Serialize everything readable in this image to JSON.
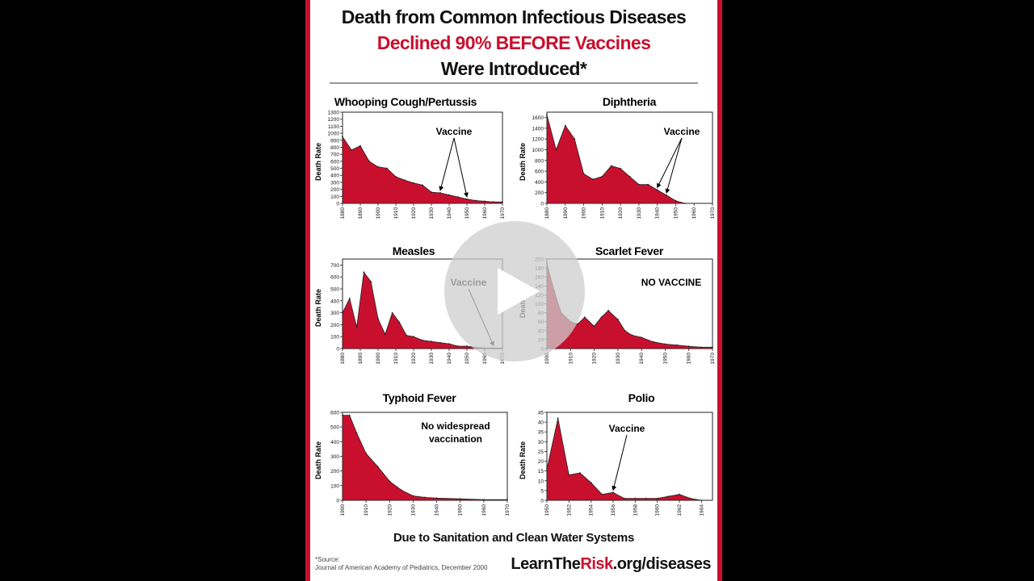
{
  "poster": {
    "title_line1": "Death from Common Infectious Diseases",
    "title_line2": "Declined 90% BEFORE Vaccines",
    "title_line3": "Were Introduced*",
    "footer": "Due to Sanitation and Clean Water Systems",
    "source_line1": "*Source:",
    "source_line2": "Journal of American Academy of Pediatrics, December 2000",
    "brand_a": "LearnThe",
    "brand_b": "Risk",
    "brand_c": ".org/diseases",
    "accent_color": "#c8102e"
  },
  "player": {
    "play_icon": "play-icon"
  },
  "chart_data": [
    {
      "type": "area",
      "title": "Whooping Cough/Pertussis",
      "ylabel": "Death Rate",
      "x": [
        1880,
        1885,
        1890,
        1895,
        1900,
        1905,
        1910,
        1915,
        1920,
        1925,
        1930,
        1935,
        1940,
        1945,
        1950,
        1955,
        1960,
        1965,
        1970
      ],
      "values": [
        950,
        760,
        820,
        600,
        520,
        500,
        380,
        330,
        290,
        260,
        160,
        150,
        120,
        90,
        60,
        40,
        30,
        20,
        20
      ],
      "xticks": [
        1880,
        1890,
        1900,
        1910,
        1920,
        1930,
        1940,
        1950,
        1960,
        1970
      ],
      "yticks": [
        0,
        100,
        200,
        300,
        400,
        500,
        600,
        700,
        800,
        900,
        1000,
        1100,
        1200,
        1300
      ],
      "xlim": [
        1880,
        1970
      ],
      "ylim": [
        0,
        1300
      ],
      "annotation": "Vaccine",
      "arrows_to_x": [
        1935,
        1950
      ]
    },
    {
      "type": "area",
      "title": "Diphtheria",
      "ylabel": "Death Rate",
      "x": [
        1880,
        1885,
        1890,
        1895,
        1900,
        1905,
        1910,
        1915,
        1920,
        1925,
        1930,
        1935,
        1940,
        1945,
        1950,
        1955
      ],
      "values": [
        1650,
        1000,
        1450,
        1200,
        550,
        450,
        500,
        700,
        650,
        500,
        350,
        350,
        250,
        150,
        50,
        0
      ],
      "xticks": [
        1880,
        1890,
        1900,
        1910,
        1920,
        1930,
        1940,
        1950,
        1960,
        1970
      ],
      "yticks": [
        0,
        200,
        400,
        600,
        800,
        1000,
        1200,
        1400,
        1600
      ],
      "xlim": [
        1880,
        1970
      ],
      "ylim": [
        0,
        1700
      ],
      "annotation": "Vaccine",
      "arrows_to_x": [
        1940,
        1945
      ]
    },
    {
      "type": "area",
      "title": "Measles",
      "ylabel": "Death Rate",
      "x": [
        1880,
        1884,
        1888,
        1892,
        1896,
        1900,
        1904,
        1908,
        1912,
        1916,
        1920,
        1925,
        1930,
        1935,
        1940,
        1945,
        1950,
        1955,
        1960,
        1965,
        1970
      ],
      "values": [
        300,
        420,
        180,
        640,
        560,
        250,
        120,
        300,
        220,
        110,
        100,
        70,
        60,
        50,
        40,
        20,
        20,
        10,
        5,
        5,
        5
      ],
      "xticks": [
        1880,
        1890,
        1900,
        1910,
        1920,
        1930,
        1940,
        1950,
        1960,
        1970
      ],
      "yticks": [
        0,
        100,
        200,
        300,
        400,
        500,
        600,
        700
      ],
      "xlim": [
        1880,
        1970
      ],
      "ylim": [
        0,
        750
      ],
      "annotation": "Vaccine",
      "arrows_to_x": [
        1965
      ]
    },
    {
      "type": "area",
      "title": "Scarlet Fever",
      "ylabel": "Death",
      "x": [
        1900,
        1903,
        1906,
        1910,
        1913,
        1916,
        1920,
        1923,
        1926,
        1930,
        1933,
        1936,
        1940,
        1945,
        1950,
        1955,
        1960,
        1965,
        1970
      ],
      "values": [
        190,
        130,
        80,
        60,
        55,
        70,
        50,
        70,
        85,
        65,
        40,
        30,
        25,
        15,
        10,
        8,
        5,
        3,
        3
      ],
      "xticks": [
        1900,
        1910,
        1920,
        1930,
        1940,
        1950,
        1960,
        1970
      ],
      "yticks": [
        0,
        20,
        40,
        60,
        80,
        100,
        120,
        140,
        160,
        180,
        200
      ],
      "xlim": [
        1900,
        1970
      ],
      "ylim": [
        0,
        200
      ],
      "annotation": "NO VACCINE",
      "arrows_to_x": []
    },
    {
      "type": "area",
      "title": "Typhoid Fever",
      "ylabel": "Death Rate",
      "x": [
        1900,
        1903,
        1906,
        1910,
        1915,
        1920,
        1925,
        1930,
        1935,
        1940,
        1950,
        1960,
        1970
      ],
      "values": [
        580,
        580,
        460,
        320,
        230,
        130,
        70,
        30,
        20,
        15,
        10,
        5,
        5
      ],
      "xticks": [
        1900,
        1910,
        1920,
        1930,
        1940,
        1950,
        1960,
        1970
      ],
      "yticks": [
        0,
        100,
        200,
        300,
        400,
        500,
        600
      ],
      "xlim": [
        1900,
        1970
      ],
      "ylim": [
        0,
        600
      ],
      "annotation": "No widespread vaccination",
      "arrows_to_x": []
    },
    {
      "type": "area",
      "title": "Polio",
      "ylabel": "Death Rate",
      "x": [
        1950,
        1951,
        1952,
        1953,
        1954,
        1955,
        1956,
        1957,
        1958,
        1959,
        1960,
        1961,
        1962,
        1963,
        1964
      ],
      "values": [
        16,
        42,
        13,
        14,
        9,
        3,
        4,
        1,
        1,
        1,
        1,
        2,
        3,
        1,
        0
      ],
      "xticks": [
        1950,
        1952,
        1954,
        1956,
        1958,
        1960,
        1962,
        1964
      ],
      "yticks": [
        0,
        5,
        10,
        15,
        20,
        25,
        30,
        35,
        40,
        45
      ],
      "xlim": [
        1950,
        1965
      ],
      "ylim": [
        0,
        45
      ],
      "annotation": "Vaccine",
      "arrows_to_x": [
        1956
      ]
    }
  ]
}
